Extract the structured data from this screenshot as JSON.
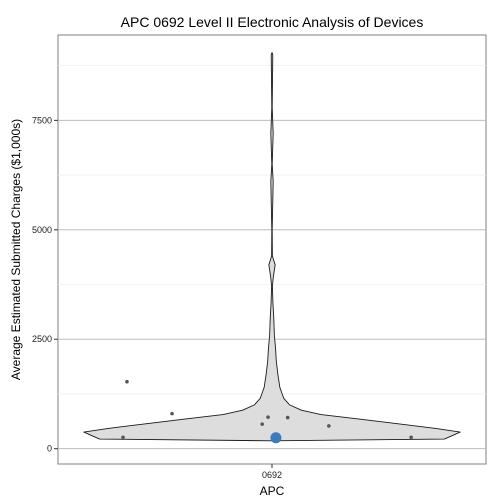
{
  "chart_data": {
    "type": "violin",
    "title": "APC 0692 Level II Electronic Analysis of Devices",
    "xlabel": "APC",
    "ylabel": "Average Estimated Submitted Charges ($1,000s)",
    "categories": [
      "0692"
    ],
    "ylim": [
      -350,
      9450
    ],
    "y_ticks": [
      0,
      2500,
      5000,
      7500
    ],
    "y_tick_labels": [
      "0",
      "2500",
      "5000",
      "7500"
    ],
    "grid": true,
    "violin_fill": "#dddddd",
    "violin_stroke": "#1a1a1a",
    "point_color": "#555555",
    "highlight_color": "#3a7abf",
    "density_profile": [
      {
        "y": 180,
        "halfwidth": 0.0
      },
      {
        "y": 220,
        "halfwidth": 0.88
      },
      {
        "y": 300,
        "halfwidth": 0.92
      },
      {
        "y": 380,
        "halfwidth": 0.96
      },
      {
        "y": 460,
        "halfwidth": 0.84
      },
      {
        "y": 560,
        "halfwidth": 0.66
      },
      {
        "y": 680,
        "halfwidth": 0.44
      },
      {
        "y": 780,
        "halfwidth": 0.25
      },
      {
        "y": 880,
        "halfwidth": 0.15
      },
      {
        "y": 1000,
        "halfwidth": 0.09
      },
      {
        "y": 1150,
        "halfwidth": 0.06
      },
      {
        "y": 1400,
        "halfwidth": 0.04
      },
      {
        "y": 1700,
        "halfwidth": 0.03
      },
      {
        "y": 2000,
        "halfwidth": 0.022
      },
      {
        "y": 2300,
        "halfwidth": 0.018
      },
      {
        "y": 2600,
        "halfwidth": 0.012
      },
      {
        "y": 3000,
        "halfwidth": 0.009
      },
      {
        "y": 3300,
        "halfwidth": 0.005
      },
      {
        "y": 3700,
        "halfwidth": 0.002
      },
      {
        "y": 3900,
        "halfwidth": 0.006
      },
      {
        "y": 4200,
        "halfwidth": 0.016
      },
      {
        "y": 4400,
        "halfwidth": 0.002
      },
      {
        "y": 5000,
        "halfwidth": 0.001
      },
      {
        "y": 6100,
        "halfwidth": 0.006
      },
      {
        "y": 6500,
        "halfwidth": 0.001
      },
      {
        "y": 7200,
        "halfwidth": 0.006
      },
      {
        "y": 7800,
        "halfwidth": 0.001
      },
      {
        "y": 9000,
        "halfwidth": 0.004
      },
      {
        "y": 9050,
        "halfwidth": 0.0
      }
    ],
    "jitter_points": [
      {
        "jitter": -0.74,
        "y": 1530
      },
      {
        "jitter": -0.51,
        "y": 800
      },
      {
        "jitter": -0.05,
        "y": 560
      },
      {
        "jitter": -0.02,
        "y": 720
      },
      {
        "jitter": 0.08,
        "y": 710
      },
      {
        "jitter": 0.29,
        "y": 520
      },
      {
        "jitter": 0.71,
        "y": 260
      },
      {
        "jitter": -0.76,
        "y": 260
      }
    ],
    "highlight_point": {
      "jitter": 0.02,
      "y": 250
    }
  }
}
